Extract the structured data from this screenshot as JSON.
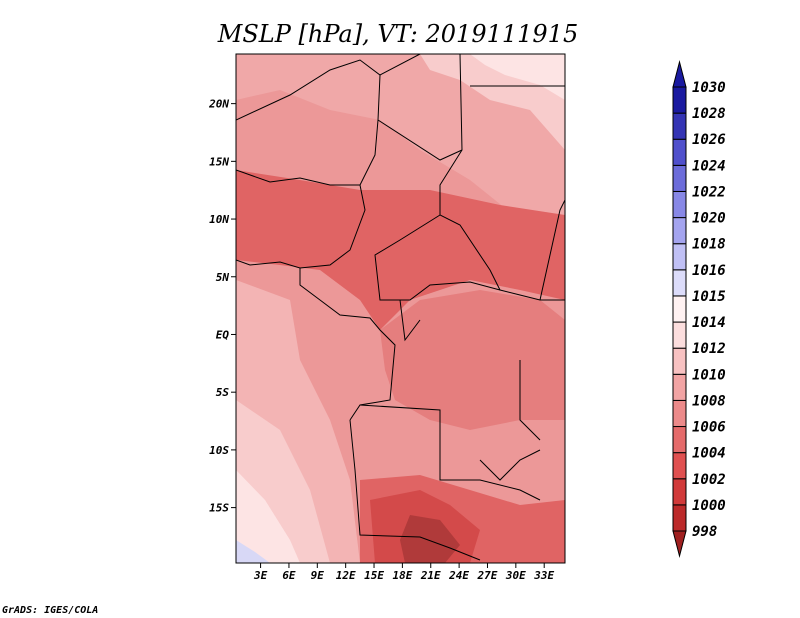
{
  "chart_data": {
    "type": "heatmap",
    "title": "MSLP [hPa], VT: 2019111915",
    "units": "hPa",
    "x_tick_labels": [
      "3E",
      "6E",
      "9E",
      "12E",
      "15E",
      "18E",
      "21E",
      "24E",
      "27E",
      "30E",
      "33E"
    ],
    "x_tick_values": [
      3,
      6,
      9,
      12,
      15,
      18,
      21,
      24,
      27,
      30,
      33
    ],
    "y_tick_labels": [
      "20N",
      "15N",
      "10N",
      "5N",
      "EQ",
      "5S",
      "10S",
      "15S"
    ],
    "y_tick_values": [
      20,
      15,
      10,
      5,
      0,
      -5,
      -10,
      -15
    ],
    "xlim": [
      0.4,
      35.2
    ],
    "ylim": [
      -19.8,
      24.3
    ],
    "colorbar": {
      "labels": [
        "998",
        "1000",
        "1002",
        "1004",
        "1006",
        "1008",
        "1010",
        "1012",
        "1014",
        "1015",
        "1016",
        "1018",
        "1020",
        "1022",
        "1024",
        "1026",
        "1028",
        "1030"
      ],
      "colors": [
        "#a02020",
        "#bc2a2a",
        "#d13a3a",
        "#e05050",
        "#e56b6b",
        "#ec8a8a",
        "#f2a4a4",
        "#f8c2c2",
        "#fcdede",
        "#fff2f2",
        "#dcdcfa",
        "#c0c0f5",
        "#a4a4ef",
        "#8888e6",
        "#6c6cda",
        "#5050cc",
        "#3434b4",
        "#1a1aa0"
      ],
      "extend": "both"
    },
    "colors_present": [
      "#b03a3a",
      "#d34a4a",
      "#e06464",
      "#e57e7e",
      "#ec9898",
      "#f3b4b4",
      "#f8cccc",
      "#fde4e4",
      "#d8d8f6"
    ],
    "map_region": "Central Africa",
    "grid": false
  },
  "credit": "GrADS: IGES/COLA"
}
